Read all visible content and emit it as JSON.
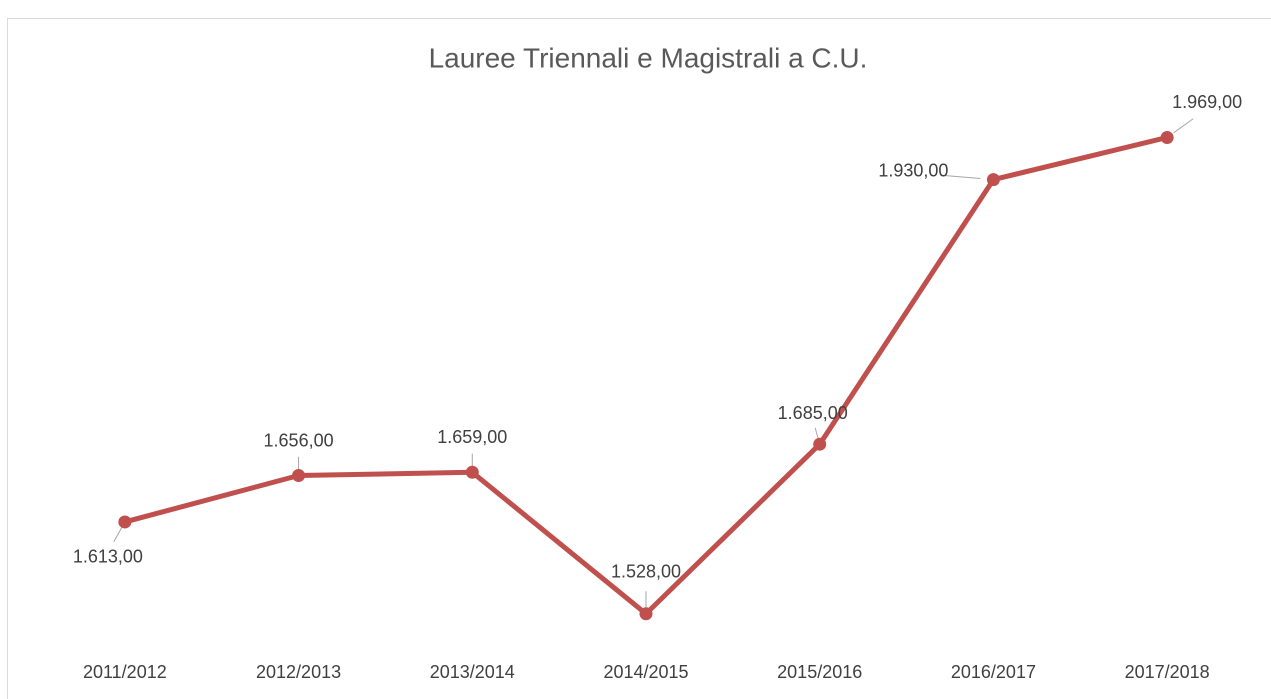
{
  "chart_data": {
    "type": "line",
    "title": "Lauree Triennali e Magistrali a C.U.",
    "categories": [
      "2011/2012",
      "2012/2013",
      "2013/2014",
      "2014/2015",
      "2015/2016",
      "2016/2017",
      "2017/2018"
    ],
    "series": [
      {
        "name": "Lauree Triennali e Magistrali a C.U.",
        "color": "#c0504d",
        "values": [
          1613,
          1656,
          1659,
          1528,
          1685,
          1930,
          1969
        ],
        "value_labels": [
          "1.613,00",
          "1.656,00",
          "1.659,00",
          "1.528,00",
          "1.685,00",
          "1.930,00",
          "1.969,00"
        ]
      }
    ],
    "ylim": [
      1500,
      2000
    ],
    "grid": false
  }
}
